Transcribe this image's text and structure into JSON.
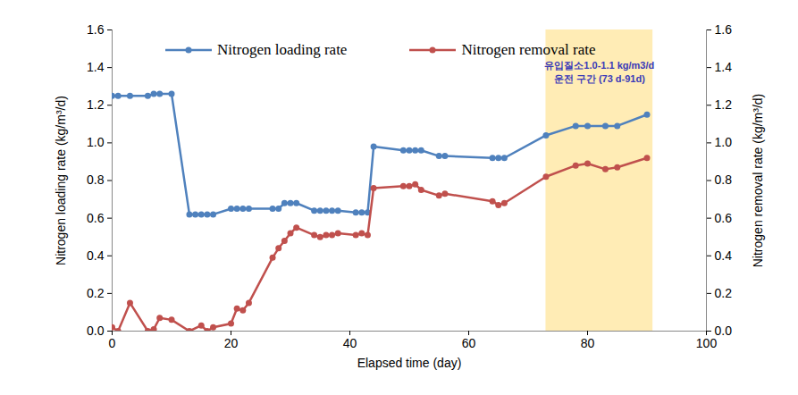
{
  "chart_data": {
    "type": "line",
    "xlabel": "Elapsed time (day)",
    "ylabel": "Nitrogen loading rate (kg/m³/d)",
    "y2label": "Nitrogen removal rate (kg/m³/d)",
    "xlim": [
      0,
      100
    ],
    "xticks": [
      0,
      20,
      40,
      60,
      80,
      100
    ],
    "ylim": [
      0,
      1.6
    ],
    "yticks": [
      {
        "value": 0,
        "label": "0.0"
      },
      {
        "value": 0.2,
        "label": "0.2"
      },
      {
        "value": 0.4,
        "label": "0.4"
      },
      {
        "value": 0.6,
        "label": "0.6"
      },
      {
        "value": 0.8,
        "label": "0.8"
      },
      {
        "value": 1,
        "label": "1.0"
      },
      {
        "value": 1.2,
        "label": "1.2"
      },
      {
        "value": 1.4,
        "label": "1.4"
      },
      {
        "value": 1.6,
        "label": "1.6"
      }
    ],
    "y2lim": [
      0,
      1.6
    ],
    "y2ticks": [
      {
        "value": 0,
        "label": "0.0"
      },
      {
        "value": 0.2,
        "label": "0.2"
      },
      {
        "value": 0.4,
        "label": "0.4"
      },
      {
        "value": 0.6,
        "label": "0.6"
      },
      {
        "value": 0.8,
        "label": "0.8"
      },
      {
        "value": 1,
        "label": "1.0"
      },
      {
        "value": 1.2,
        "label": "1.2"
      },
      {
        "value": 1.4,
        "label": "1.4"
      },
      {
        "value": 1.6,
        "label": "1.6"
      }
    ],
    "grid": false,
    "legend": "top",
    "series": [
      {
        "name": "Nitrogen loading rate",
        "color": "#4F81BD",
        "marker": "circle",
        "x": [
          0,
          1,
          3,
          6,
          7,
          8,
          10,
          13,
          14,
          15,
          16,
          17,
          20,
          21,
          22,
          23,
          27,
          28,
          29,
          30,
          31,
          34,
          35,
          36,
          37,
          38,
          41,
          42,
          43,
          44,
          49,
          50,
          51,
          52,
          55,
          56,
          64,
          65,
          66,
          73,
          78,
          80,
          83,
          85,
          90
        ],
        "values": [
          1.25,
          1.25,
          1.25,
          1.25,
          1.26,
          1.26,
          1.26,
          0.62,
          0.62,
          0.62,
          0.62,
          0.62,
          0.65,
          0.65,
          0.65,
          0.65,
          0.65,
          0.65,
          0.68,
          0.68,
          0.68,
          0.64,
          0.64,
          0.64,
          0.64,
          0.64,
          0.63,
          0.63,
          0.63,
          0.98,
          0.96,
          0.96,
          0.96,
          0.96,
          0.93,
          0.93,
          0.92,
          0.92,
          0.92,
          1.04,
          1.09,
          1.09,
          1.09,
          1.09,
          1.15
        ]
      },
      {
        "name": "Nitrogen removal rate",
        "color": "#C0504D",
        "marker": "circle",
        "axis": "y2",
        "x": [
          0,
          1,
          3,
          6,
          7,
          8,
          10,
          13,
          15,
          16,
          17,
          20,
          21,
          22,
          23,
          27,
          28,
          29,
          30,
          31,
          34,
          35,
          36,
          37,
          38,
          41,
          42,
          43,
          44,
          49,
          50,
          51,
          52,
          55,
          56,
          64,
          65,
          66,
          73,
          78,
          80,
          83,
          85,
          90
        ],
        "values": [
          0.02,
          0,
          0.15,
          0,
          0.01,
          0.07,
          0.06,
          0,
          0.03,
          0,
          0.02,
          0.04,
          0.12,
          0.11,
          0.15,
          0.39,
          0.44,
          0.48,
          0.52,
          0.55,
          0.51,
          0.5,
          0.51,
          0.51,
          0.52,
          0.51,
          0.52,
          0.51,
          0.76,
          0.77,
          0.77,
          0.78,
          0.75,
          0.72,
          0.73,
          0.69,
          0.67,
          0.68,
          0.82,
          0.88,
          0.89,
          0.86,
          0.87,
          0.92
        ]
      }
    ],
    "annotations": [
      {
        "text": [
          "유입질소1.0-1.1 kg/m3/d",
          "운전 구간 (73 d-91d)"
        ],
        "x": [
          73,
          91
        ]
      }
    ]
  }
}
